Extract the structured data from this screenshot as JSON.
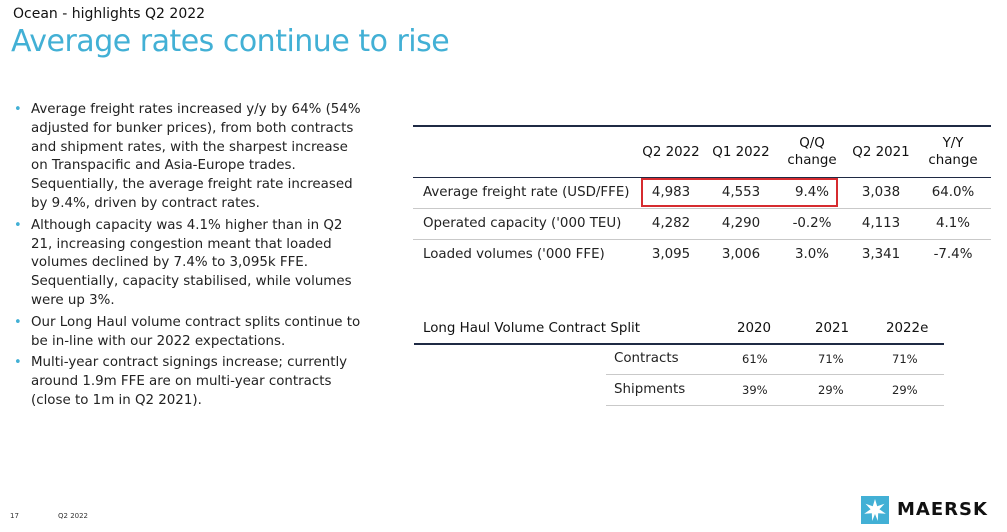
{
  "header": {
    "supertitle": "Ocean - highlights Q2 2022",
    "title": "Average rates continue to rise"
  },
  "bullets": [
    "Average freight rates increased y/y by 64% (54% adjusted for bunker prices), from both contracts and shipment rates, with the sharpest increase on Transpacific and Asia-Europe trades.  Sequentially, the average freight rate increased by 9.4%, driven by contract rates.",
    "Although capacity was 4.1% higher than in Q2 21, increasing congestion meant that loaded volumes declined by 7.4% to 3,095k FFE. Sequentially, capacity stabilised, while volumes were up 3%.",
    "Our Long Haul volume contract splits continue to be in-line with our 2022 expectations.",
    "Multi-year contract signings increase; currently around 1.9m FFE are on multi-year contracts (close to 1m in Q2 2021)."
  ],
  "table1": {
    "headers": [
      "Q2 2022",
      "Q1 2022",
      "Q/Q",
      "change",
      "Q2 2021",
      "Y/Y",
      "change"
    ],
    "rows": [
      {
        "label": "Average freight rate (USD/FFE)",
        "values": [
          "4,983",
          "4,553",
          "9.4%",
          "3,038",
          "64.0%"
        ]
      },
      {
        "label": "Operated capacity ('000 TEU)",
        "values": [
          "4,282",
          "4,290",
          "-0.2%",
          "4,113",
          "4.1%"
        ]
      },
      {
        "label": "Loaded volumes ('000 FFE)",
        "values": [
          "3,095",
          "3,006",
          "3.0%",
          "3,341",
          "-7.4%"
        ]
      }
    ]
  },
  "table2": {
    "title": "Long Haul Volume Contract Split",
    "years": [
      "2020",
      "2021",
      "2022e"
    ],
    "rows": [
      {
        "label": "Contracts",
        "values": [
          "61%",
          "71%",
          "71%"
        ]
      },
      {
        "label": "Shipments",
        "values": [
          "39%",
          "29%",
          "29%"
        ]
      }
    ]
  },
  "footer": {
    "page": "17",
    "period": "Q2 2022",
    "logo_text": "MAERSK"
  },
  "colors": {
    "accent": "#42b0d5",
    "highlight_border": "#d62b2f",
    "rule": "#1f2a44"
  },
  "icons": {
    "logo_icon": "maersk-star-icon"
  }
}
